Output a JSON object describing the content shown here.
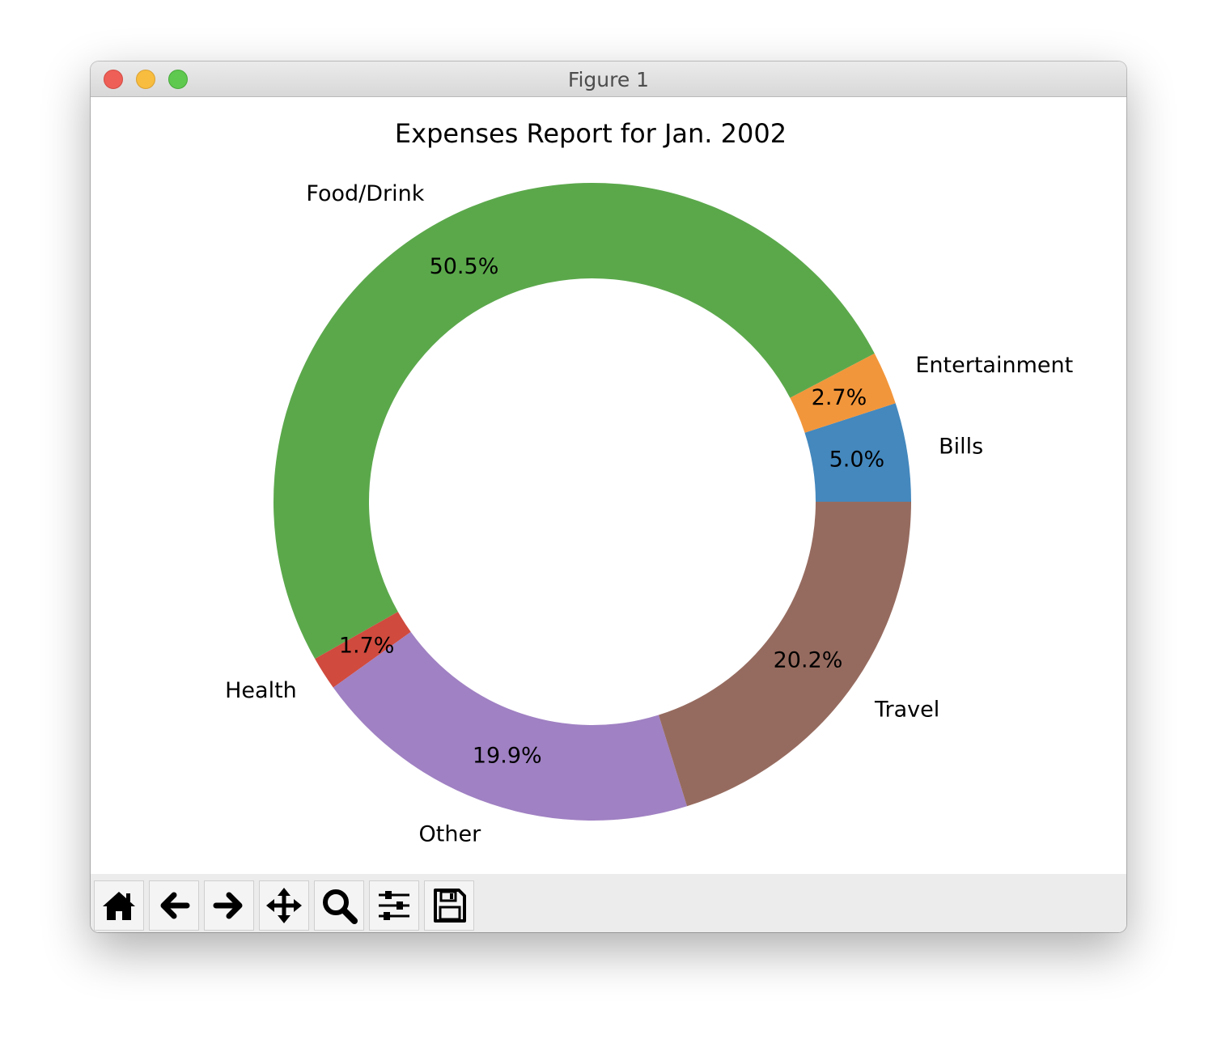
{
  "window": {
    "title": "Figure 1"
  },
  "toolbar": {
    "buttons": [
      {
        "name": "home-button",
        "icon": "home-icon"
      },
      {
        "name": "back-button",
        "icon": "arrow-left-icon"
      },
      {
        "name": "forward-button",
        "icon": "arrow-right-icon"
      },
      {
        "name": "pan-button",
        "icon": "move-icon"
      },
      {
        "name": "zoom-button",
        "icon": "magnifier-icon"
      },
      {
        "name": "configure-subplots-button",
        "icon": "sliders-icon"
      },
      {
        "name": "save-button",
        "icon": "floppy-disk-icon"
      }
    ]
  },
  "chart_data": {
    "type": "pie",
    "style": "donut",
    "title": "Expenses Report for Jan. 2002",
    "start_angle_deg": 0,
    "direction": "counterclockwise",
    "slices": [
      {
        "label": "Bills",
        "percent": 5.0,
        "pct_label": "5.0%",
        "color": "#4488bd"
      },
      {
        "label": "Entertainment",
        "percent": 2.7,
        "pct_label": "2.7%",
        "color": "#f2963b"
      },
      {
        "label": "Food/Drink",
        "percent": 50.5,
        "pct_label": "50.5%",
        "color": "#5ba84b"
      },
      {
        "label": "Health",
        "percent": 1.7,
        "pct_label": "1.7%",
        "color": "#d04a3e"
      },
      {
        "label": "Other",
        "percent": 19.9,
        "pct_label": "19.9%",
        "color": "#a081c3"
      },
      {
        "label": "Travel",
        "percent": 20.2,
        "pct_label": "20.2%",
        "color": "#966b5f"
      }
    ]
  }
}
